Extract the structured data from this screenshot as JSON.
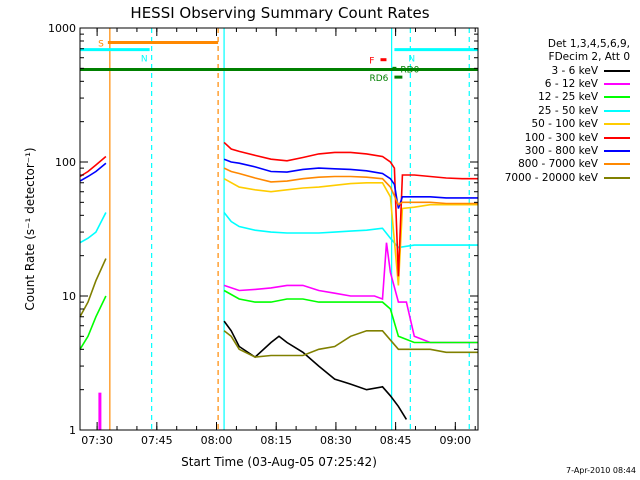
{
  "chart_data": {
    "type": "line",
    "title": "HESSI Observing Summary Count Rates",
    "xlabel": "Start Time (03-Aug-05 07:25:42)",
    "ylabel": "Count Rate (s⁻¹ detector⁻¹)",
    "x_unit": "minutes after 07:25:42",
    "xlim": [
      0,
      100
    ],
    "ylim": [
      1,
      1000
    ],
    "yscale": "log",
    "y_ticks": [
      1,
      10,
      100,
      1000
    ],
    "y_tick_labels": [
      "1",
      "10",
      "100",
      "1000"
    ],
    "x_ticks": [
      4.3,
      19.3,
      34.3,
      49.3,
      64.3,
      79.3,
      94.3
    ],
    "x_tick_labels": [
      "07:30",
      "07:45",
      "08:00",
      "08:15",
      "08:30",
      "08:45",
      "09:00"
    ],
    "legend_header": [
      "Det 1,3,4,5,6,9,",
      "FDecim 2, Att 0"
    ],
    "legend_position": "right",
    "segments": [
      [
        0,
        6.5
      ],
      [
        36.2,
        100
      ]
    ],
    "series": [
      {
        "name": "3 - 6 keV",
        "color": "#000000",
        "values": [
          [
            36.2,
            6.5
          ],
          [
            38,
            5.5
          ],
          [
            40,
            4.2
          ],
          [
            44,
            3.5
          ],
          [
            48,
            4.5
          ],
          [
            50,
            5.0
          ],
          [
            52,
            4.5
          ],
          [
            56,
            3.8
          ],
          [
            60,
            3.0
          ],
          [
            64,
            2.4
          ],
          [
            68,
            2.2
          ],
          [
            72,
            2.0
          ],
          [
            76,
            2.1
          ],
          [
            78,
            1.8
          ],
          [
            80,
            1.5
          ],
          [
            82,
            1.2
          ]
        ]
      },
      {
        "name": "6 - 12 keV",
        "color": "#ff00ff",
        "values": [
          [
            36.2,
            12
          ],
          [
            40,
            11
          ],
          [
            44,
            11.2
          ],
          [
            48,
            11.5
          ],
          [
            52,
            12
          ],
          [
            56,
            12
          ],
          [
            60,
            11
          ],
          [
            64,
            10.5
          ],
          [
            68,
            10
          ],
          [
            72,
            10
          ],
          [
            74,
            10
          ],
          [
            76,
            9.5
          ],
          [
            77,
            25
          ],
          [
            78,
            15
          ],
          [
            80,
            9
          ],
          [
            82,
            9
          ],
          [
            84,
            5
          ],
          [
            88,
            4.5
          ],
          [
            92,
            4.5
          ],
          [
            96,
            4.5
          ],
          [
            100,
            4.5
          ]
        ]
      },
      {
        "name": "12 - 25 keV",
        "color": "#00ff00",
        "values": [
          [
            0,
            4
          ],
          [
            2,
            5
          ],
          [
            4,
            7
          ],
          [
            6.5,
            10
          ],
          [
            36.2,
            11
          ],
          [
            40,
            9.5
          ],
          [
            44,
            9
          ],
          [
            48,
            9
          ],
          [
            52,
            9.5
          ],
          [
            56,
            9.5
          ],
          [
            60,
            9
          ],
          [
            64,
            9
          ],
          [
            68,
            9
          ],
          [
            72,
            9
          ],
          [
            76,
            9
          ],
          [
            78,
            8
          ],
          [
            80,
            5
          ],
          [
            84,
            4.5
          ],
          [
            88,
            4.5
          ],
          [
            92,
            4.5
          ],
          [
            96,
            4.5
          ],
          [
            100,
            4.5
          ]
        ]
      },
      {
        "name": "25 - 50 keV",
        "color": "#00ffff",
        "values": [
          [
            0,
            25
          ],
          [
            2,
            27
          ],
          [
            4,
            30
          ],
          [
            6.5,
            42
          ],
          [
            36.2,
            42
          ],
          [
            38,
            36
          ],
          [
            40,
            33
          ],
          [
            44,
            31
          ],
          [
            48,
            30
          ],
          [
            52,
            29.5
          ],
          [
            56,
            29.5
          ],
          [
            60,
            29.5
          ],
          [
            64,
            30
          ],
          [
            68,
            30.5
          ],
          [
            72,
            31
          ],
          [
            76,
            32
          ],
          [
            78,
            27
          ],
          [
            80,
            23
          ],
          [
            84,
            24
          ],
          [
            88,
            24
          ],
          [
            92,
            24
          ],
          [
            96,
            24
          ],
          [
            100,
            24
          ]
        ]
      },
      {
        "name": "50 - 100 keV",
        "color": "#ffcc00",
        "values": [
          [
            36.2,
            75
          ],
          [
            40,
            65
          ],
          [
            44,
            62
          ],
          [
            48,
            60
          ],
          [
            52,
            62
          ],
          [
            56,
            64
          ],
          [
            60,
            65
          ],
          [
            64,
            67
          ],
          [
            68,
            69
          ],
          [
            72,
            70
          ],
          [
            76,
            70
          ],
          [
            78,
            55
          ],
          [
            80,
            12
          ],
          [
            81,
            45
          ],
          [
            84,
            46
          ],
          [
            88,
            48
          ],
          [
            92,
            48
          ],
          [
            96,
            48
          ],
          [
            100,
            48
          ]
        ]
      },
      {
        "name": "100 - 300 keV",
        "color": "#ff0000",
        "values": [
          [
            0,
            78
          ],
          [
            2,
            85
          ],
          [
            4,
            95
          ],
          [
            6.5,
            110
          ],
          [
            36.2,
            140
          ],
          [
            38,
            125
          ],
          [
            40,
            120
          ],
          [
            44,
            112
          ],
          [
            48,
            105
          ],
          [
            52,
            102
          ],
          [
            56,
            108
          ],
          [
            60,
            115
          ],
          [
            64,
            118
          ],
          [
            68,
            118
          ],
          [
            72,
            115
          ],
          [
            76,
            110
          ],
          [
            78,
            100
          ],
          [
            79,
            90
          ],
          [
            80,
            14
          ],
          [
            81,
            80
          ],
          [
            84,
            80
          ],
          [
            88,
            78
          ],
          [
            92,
            76
          ],
          [
            96,
            75
          ],
          [
            100,
            75
          ]
        ]
      },
      {
        "name": "300 - 800 keV",
        "color": "#0000ff",
        "values": [
          [
            0,
            72
          ],
          [
            2,
            78
          ],
          [
            4,
            85
          ],
          [
            6.5,
            98
          ],
          [
            36.2,
            105
          ],
          [
            38,
            100
          ],
          [
            40,
            98
          ],
          [
            44,
            92
          ],
          [
            48,
            85
          ],
          [
            52,
            84
          ],
          [
            56,
            88
          ],
          [
            60,
            90
          ],
          [
            64,
            89
          ],
          [
            68,
            88
          ],
          [
            72,
            86
          ],
          [
            76,
            82
          ],
          [
            78,
            75
          ],
          [
            79,
            68
          ],
          [
            80,
            45
          ],
          [
            81,
            55
          ],
          [
            84,
            55
          ],
          [
            88,
            55
          ],
          [
            92,
            54
          ],
          [
            96,
            54
          ],
          [
            100,
            54
          ]
        ]
      },
      {
        "name": "800 - 7000 keV",
        "color": "#ff8800",
        "values": [
          [
            36.2,
            90
          ],
          [
            38,
            85
          ],
          [
            40,
            82
          ],
          [
            44,
            76
          ],
          [
            48,
            71
          ],
          [
            52,
            72
          ],
          [
            56,
            75
          ],
          [
            60,
            77
          ],
          [
            64,
            78
          ],
          [
            68,
            78
          ],
          [
            72,
            77
          ],
          [
            76,
            75
          ],
          [
            78,
            65
          ],
          [
            80,
            48
          ],
          [
            81,
            50
          ],
          [
            84,
            50
          ],
          [
            88,
            50
          ],
          [
            92,
            49
          ],
          [
            96,
            49
          ],
          [
            100,
            49
          ]
        ]
      },
      {
        "name": "7000 - 20000 keV",
        "color": "#808000",
        "values": [
          [
            0,
            7
          ],
          [
            2,
            9
          ],
          [
            4,
            13
          ],
          [
            6.5,
            19
          ],
          [
            36.2,
            5.5
          ],
          [
            38,
            5
          ],
          [
            40,
            4
          ],
          [
            44,
            3.5
          ],
          [
            48,
            3.6
          ],
          [
            52,
            3.6
          ],
          [
            56,
            3.6
          ],
          [
            60,
            4
          ],
          [
            64,
            4.2
          ],
          [
            68,
            5
          ],
          [
            72,
            5.5
          ],
          [
            76,
            5.5
          ],
          [
            80,
            4
          ],
          [
            84,
            4
          ],
          [
            88,
            4
          ],
          [
            92,
            3.8
          ],
          [
            96,
            3.8
          ],
          [
            100,
            3.8
          ]
        ]
      }
    ],
    "annotations": {
      "flag_bars": [
        {
          "label": "S",
          "color": "#ff8800",
          "x0": 7.0,
          "x1": 34.7,
          "y": 780
        },
        {
          "label": "N",
          "color": "#00ffff",
          "x0": 0.0,
          "x1": 17.5,
          "y": 690
        },
        {
          "label": "F",
          "color": "#ff0000",
          "x0": 75.5,
          "x1": 77.0,
          "y": 580
        },
        {
          "label": "RD0",
          "color": "#008000",
          "x0": 78.5,
          "x1": 79.5,
          "y": 500
        },
        {
          "label": "RD6",
          "color": "#008000",
          "x0": 79.0,
          "x1": 81.0,
          "y": 430
        },
        {
          "label": "N",
          "color": "#00ffff",
          "x0": 79.0,
          "x1": 100.0,
          "y": 690
        }
      ],
      "green_line_y": 490,
      "vlines": [
        {
          "x": 7.5,
          "color": "#ff8800",
          "style": "solid"
        },
        {
          "x": 18.0,
          "color": "#00ffff",
          "style": "dashed"
        },
        {
          "x": 34.7,
          "color": "#ff8800",
          "style": "dashed"
        },
        {
          "x": 36.2,
          "color": "#00ffff",
          "style": "solid"
        },
        {
          "x": 78.3,
          "color": "#00ffff",
          "style": "solid"
        },
        {
          "x": 83.0,
          "color": "#00ffff",
          "style": "dashed"
        },
        {
          "x": 97.8,
          "color": "#00ffff",
          "style": "dashed"
        }
      ],
      "magenta_spike": {
        "x": 5.0,
        "y_top": 1.9,
        "color": "#ff00ff"
      }
    }
  },
  "timestamp": "7-Apr-2010 08:44"
}
